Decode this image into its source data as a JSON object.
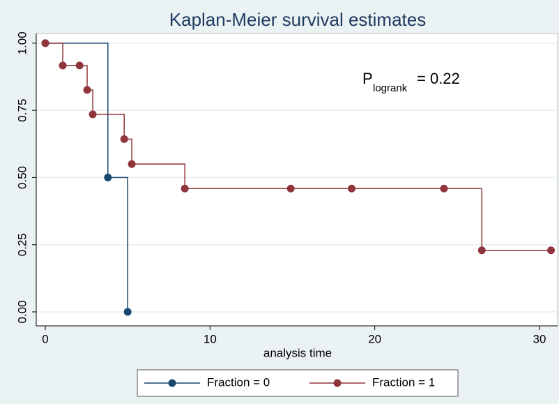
{
  "chart_data": {
    "type": "step",
    "title": "Kaplan-Meier survival estimates",
    "x_label": "analysis time",
    "annotation": {
      "main": "P",
      "subscript": "logrank",
      "rest": "= 0.22"
    },
    "xlim": [
      -0.55,
      31.1
    ],
    "xticks": [
      0,
      10,
      20,
      30
    ],
    "ylim": [
      -0.052,
      1.036
    ],
    "yticks": [
      {
        "value": 0,
        "label": "0.00"
      },
      {
        "value": 0.25,
        "label": "0.25"
      },
      {
        "value": 0.5,
        "label": "0.50"
      },
      {
        "value": 0.75,
        "label": "0.75"
      },
      {
        "value": 1,
        "label": "1.00"
      }
    ],
    "grid": true,
    "series": [
      {
        "name": "Fraction = 0",
        "color": "#1a476f",
        "x": [
          0,
          3.8,
          5.0
        ],
        "values": [
          1,
          0.5,
          0
        ]
      },
      {
        "name": "Fraction = 1",
        "color": "#90353b",
        "x": [
          0,
          1.06,
          2.08,
          2.54,
          2.88,
          4.79,
          5.25,
          8.47,
          14.9,
          18.6,
          24.2,
          26.5,
          30.7
        ],
        "values": [
          1,
          0.917,
          0.917,
          0.826,
          0.735,
          0.643,
          0.55,
          0.459,
          0.459,
          0.459,
          0.459,
          0.229,
          0.229
        ]
      }
    ]
  }
}
